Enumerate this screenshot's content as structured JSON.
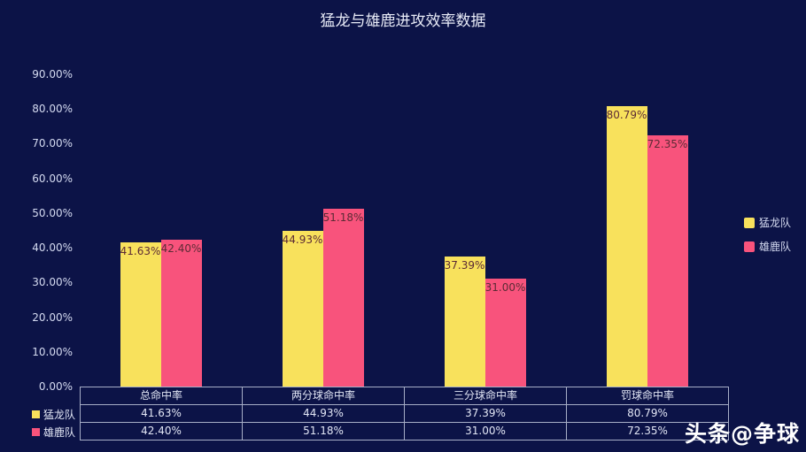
{
  "title": "猛龙与雄鹿进攻效率数据",
  "watermark": {
    "prefix": "头条",
    "handle": "@争球"
  },
  "colors": {
    "background": "#0c1347",
    "raptors_yellow": "#f8e15c",
    "bucks_pink": "#f8537c",
    "bar_label": "#5c2b35",
    "axis_text": "#d4daf0",
    "title_text": "#e8ebf7",
    "table_border": "#a7aec7",
    "table_text": "#e2e6f5"
  },
  "chart_data": {
    "type": "bar",
    "title": "猛龙与雄鹿进攻效率数据",
    "categories": [
      "总命中率",
      "两分球命中率",
      "三分球命中率",
      "罚球命中率"
    ],
    "series": [
      {
        "name": "猛龙队",
        "key": "raptors",
        "color": "#f8e15c",
        "values": [
          41.63,
          44.93,
          37.39,
          80.79
        ],
        "labels": [
          "41.63%",
          "44.93%",
          "37.39%",
          "80.79%"
        ]
      },
      {
        "name": "雄鹿队",
        "key": "bucks",
        "color": "#f8537c",
        "values": [
          42.4,
          51.18,
          31.0,
          72.35
        ],
        "labels": [
          "42.40%",
          "51.18%",
          "31.00%",
          "72.35%"
        ]
      }
    ],
    "xlabel": "",
    "ylabel": "",
    "ylim": [
      0,
      90
    ],
    "y_ticks": [
      "90.00%",
      "80.00%",
      "70.00%",
      "60.00%",
      "50.00%",
      "40.00%",
      "30.00%",
      "20.00%",
      "10.00%",
      "0.00%"
    ],
    "grid": false,
    "legend_position": "right",
    "data_table_shown": true
  }
}
